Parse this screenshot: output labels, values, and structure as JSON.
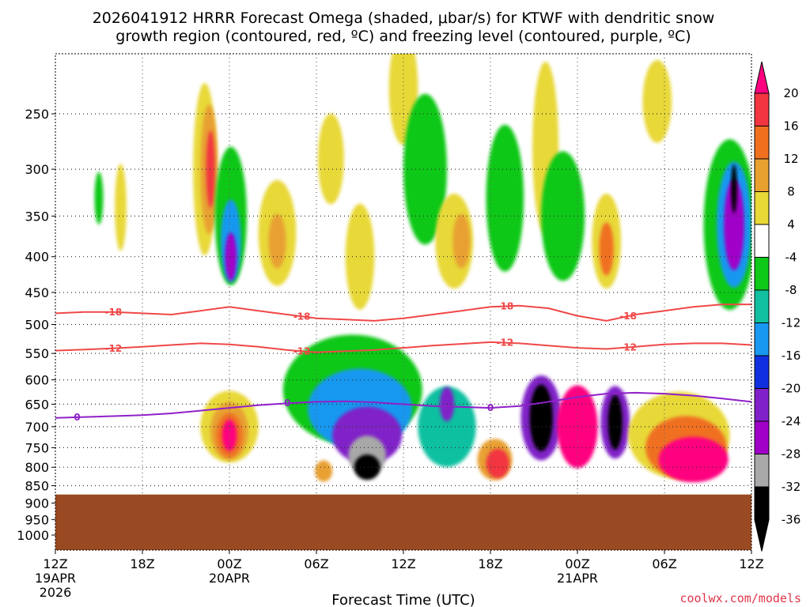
{
  "chart_data": {
    "type": "heatmap",
    "title_line1": "2026041912 HRRR Forecast Omega (shaded, μbar/s) for KTWF with dendritic snow",
    "title_line2": "growth region (contoured, red, ºC) and freezing level (contoured, purple, ºC)",
    "xlabel": "Forecast Time (UTC)",
    "credit": "coolwx.com/models",
    "x_ticks": [
      {
        "hour": 0,
        "label": "12Z",
        "sub1": "19APR",
        "sub2": "2026"
      },
      {
        "hour": 6,
        "label": "18Z",
        "sub1": "",
        "sub2": ""
      },
      {
        "hour": 12,
        "label": "00Z",
        "sub1": "20APR",
        "sub2": ""
      },
      {
        "hour": 18,
        "label": "06Z",
        "sub1": "",
        "sub2": ""
      },
      {
        "hour": 24,
        "label": "12Z",
        "sub1": "",
        "sub2": ""
      },
      {
        "hour": 30,
        "label": "18Z",
        "sub1": "",
        "sub2": ""
      },
      {
        "hour": 36,
        "label": "00Z",
        "sub1": "21APR",
        "sub2": ""
      },
      {
        "hour": 42,
        "label": "06Z",
        "sub1": "",
        "sub2": ""
      },
      {
        "hour": 48,
        "label": "12Z",
        "sub1": "",
        "sub2": ""
      }
    ],
    "xlim_hours": [
      0,
      48
    ],
    "y_ticks": [
      250,
      300,
      350,
      400,
      450,
      500,
      550,
      600,
      650,
      700,
      750,
      800,
      850,
      900,
      950,
      1000
    ],
    "ylim_hPa": [
      200,
      1050
    ],
    "y_scale": "log-pressure",
    "grid": true,
    "terrain": {
      "surface_hPa": 875,
      "color": "#9a4a22"
    },
    "colorbar": {
      "ticks": [
        20,
        16,
        12,
        8,
        4,
        -4,
        -8,
        -12,
        -16,
        -20,
        -24,
        -28,
        -32,
        -36
      ],
      "colors": [
        "#ff0080",
        "#f23540",
        "#f07020",
        "#e8a030",
        "#e8d838",
        "#ffffff",
        "#10c818",
        "#10c0a0",
        "#1898f0",
        "#1030e0",
        "#8020c8",
        "#a000c8",
        "#a8a8a8",
        "#000000"
      ]
    },
    "contours": [
      {
        "name": "-18",
        "color": "#f04848",
        "label": "-18",
        "hours": [
          0,
          2,
          4,
          6,
          8,
          10,
          12,
          14,
          16,
          18,
          20,
          22,
          24,
          26,
          28,
          30,
          32,
          34,
          36,
          38,
          40,
          42,
          44,
          46,
          48
        ],
        "hPa": [
          482,
          480,
          480,
          482,
          484,
          478,
          472,
          478,
          484,
          490,
          492,
          494,
          490,
          484,
          478,
          472,
          470,
          474,
          486,
          494,
          484,
          478,
          472,
          468,
          468
        ]
      },
      {
        "name": "-12",
        "color": "#f04848",
        "label": "-12",
        "hours": [
          0,
          2,
          4,
          6,
          8,
          10,
          12,
          14,
          16,
          18,
          20,
          22,
          24,
          26,
          28,
          30,
          32,
          34,
          36,
          38,
          40,
          42,
          44,
          46,
          48
        ],
        "hPa": [
          545,
          543,
          541,
          538,
          535,
          532,
          534,
          538,
          544,
          548,
          546,
          544,
          540,
          536,
          533,
          530,
          532,
          536,
          540,
          542,
          538,
          534,
          532,
          532,
          535
        ]
      },
      {
        "name": "0",
        "color": "#9020c8",
        "label": "0",
        "hours": [
          0,
          2,
          4,
          6,
          8,
          10,
          12,
          14,
          16,
          18,
          20,
          22,
          24,
          26,
          28,
          30,
          32,
          34,
          36,
          38,
          40,
          42,
          44,
          46,
          48
        ],
        "hPa": [
          680,
          678,
          676,
          674,
          670,
          664,
          658,
          652,
          648,
          645,
          644,
          646,
          650,
          654,
          656,
          658,
          654,
          645,
          635,
          628,
          626,
          628,
          632,
          638,
          645
        ]
      }
    ],
    "shaded_features": [
      {
        "hour": 4.5,
        "hPa": 340,
        "rh": 0.4,
        "rp": 90,
        "value": 5
      },
      {
        "hour": 10.3,
        "hPa": 300,
        "rh": 0.8,
        "rp": 160,
        "value": 5
      },
      {
        "hour": 10.6,
        "hPa": 300,
        "rh": 0.6,
        "rp": 120,
        "value": 9
      },
      {
        "hour": 10.7,
        "hPa": 300,
        "rh": 0.3,
        "rp": 70,
        "value": 18
      },
      {
        "hour": 12.1,
        "hPa": 350,
        "rh": 1.1,
        "rp": 150,
        "value": -6
      },
      {
        "hour": 12.1,
        "hPa": 380,
        "rh": 0.7,
        "rp": 95,
        "value": -14
      },
      {
        "hour": 12.1,
        "hPa": 400,
        "rh": 0.4,
        "rp": 55,
        "value": -26
      },
      {
        "hour": 15.3,
        "hPa": 370,
        "rh": 1.3,
        "rp": 120,
        "value": 5
      },
      {
        "hour": 15.3,
        "hPa": 380,
        "rh": 0.6,
        "rp": 60,
        "value": 10
      },
      {
        "hour": 19.0,
        "hPa": 290,
        "rh": 0.9,
        "rp": 80,
        "value": 5
      },
      {
        "hour": 21.0,
        "hPa": 400,
        "rh": 1.0,
        "rp": 130,
        "value": 5
      },
      {
        "hour": 24.0,
        "hPa": 230,
        "rh": 1.0,
        "rp": 80,
        "value": 5
      },
      {
        "hour": 25.5,
        "hPa": 300,
        "rh": 1.5,
        "rp": 140,
        "value": -6
      },
      {
        "hour": 27.5,
        "hPa": 380,
        "rh": 1.3,
        "rp": 110,
        "value": 6
      },
      {
        "hour": 28.0,
        "hPa": 380,
        "rh": 0.6,
        "rp": 60,
        "value": 11
      },
      {
        "hour": 31.0,
        "hPa": 330,
        "rh": 1.3,
        "rp": 150,
        "value": -6
      },
      {
        "hour": 33.8,
        "hPa": 280,
        "rh": 0.9,
        "rp": 150,
        "value": 5
      },
      {
        "hour": 35.0,
        "hPa": 350,
        "rh": 1.5,
        "rp": 140,
        "value": -6
      },
      {
        "hour": 38.0,
        "hPa": 380,
        "rh": 1.0,
        "rp": 110,
        "value": 6
      },
      {
        "hour": 38.0,
        "hPa": 390,
        "rh": 0.5,
        "rp": 60,
        "value": 12
      },
      {
        "hour": 41.5,
        "hPa": 240,
        "rh": 1.0,
        "rp": 60,
        "value": 6
      },
      {
        "hour": 46.5,
        "hPa": 360,
        "rh": 1.8,
        "rp": 190,
        "value": -6
      },
      {
        "hour": 46.8,
        "hPa": 360,
        "rh": 1.2,
        "rp": 140,
        "value": -14
      },
      {
        "hour": 46.8,
        "hPa": 360,
        "rh": 0.7,
        "rp": 100,
        "value": -24
      },
      {
        "hour": 46.8,
        "hPa": 320,
        "rh": 0.2,
        "rp": 45,
        "value": -33
      },
      {
        "hour": 12.0,
        "hPa": 700,
        "rh": 2.0,
        "rp": 150,
        "value": 5
      },
      {
        "hour": 12.0,
        "hPa": 710,
        "rh": 1.3,
        "rp": 120,
        "value": 10
      },
      {
        "hour": 12.0,
        "hPa": 720,
        "rh": 0.9,
        "rp": 90,
        "value": 15
      },
      {
        "hour": 12.0,
        "hPa": 720,
        "rh": 0.5,
        "rp": 60,
        "value": 21
      },
      {
        "hour": 20.5,
        "hPa": 620,
        "rh": 4.8,
        "rp": 210,
        "value": -6
      },
      {
        "hour": 21.0,
        "hPa": 660,
        "rh": 3.6,
        "rp": 160,
        "value": -14
      },
      {
        "hour": 21.5,
        "hPa": 720,
        "rh": 2.4,
        "rp": 120,
        "value": -22
      },
      {
        "hour": 21.5,
        "hPa": 770,
        "rh": 1.3,
        "rp": 85,
        "value": -30
      },
      {
        "hour": 21.5,
        "hPa": 800,
        "rh": 0.9,
        "rp": 50,
        "value": -40
      },
      {
        "hour": 18.5,
        "hPa": 810,
        "rh": 0.6,
        "rp": 40,
        "value": 8
      },
      {
        "hour": 27.0,
        "hPa": 700,
        "rh": 2.0,
        "rp": 170,
        "value": -8
      },
      {
        "hour": 27.0,
        "hPa": 650,
        "rh": 0.5,
        "rp": 60,
        "value": -22
      },
      {
        "hour": 30.3,
        "hPa": 780,
        "rh": 1.2,
        "rp": 90,
        "value": 8
      },
      {
        "hour": 30.5,
        "hPa": 790,
        "rh": 0.8,
        "rp": 60,
        "value": 16
      },
      {
        "hour": 33.5,
        "hPa": 680,
        "rh": 1.4,
        "rp": 175,
        "value": -22
      },
      {
        "hour": 33.5,
        "hPa": 680,
        "rh": 0.8,
        "rp": 135,
        "value": -40
      },
      {
        "hour": 36.0,
        "hPa": 700,
        "rh": 1.4,
        "rp": 175,
        "value": 22
      },
      {
        "hour": 38.6,
        "hPa": 690,
        "rh": 1.0,
        "rp": 150,
        "value": -22
      },
      {
        "hour": 38.6,
        "hPa": 690,
        "rh": 0.5,
        "rp": 110,
        "value": -40
      },
      {
        "hour": 43.0,
        "hPa": 720,
        "rh": 3.5,
        "rp": 190,
        "value": 5
      },
      {
        "hour": 43.5,
        "hPa": 750,
        "rh": 2.8,
        "rp": 140,
        "value": 12
      },
      {
        "hour": 44.0,
        "hPa": 780,
        "rh": 2.4,
        "rp": 100,
        "value": 21
      },
      {
        "hour": 3.0,
        "hPa": 330,
        "rh": 0.3,
        "rp": 50,
        "value": -6
      }
    ]
  }
}
